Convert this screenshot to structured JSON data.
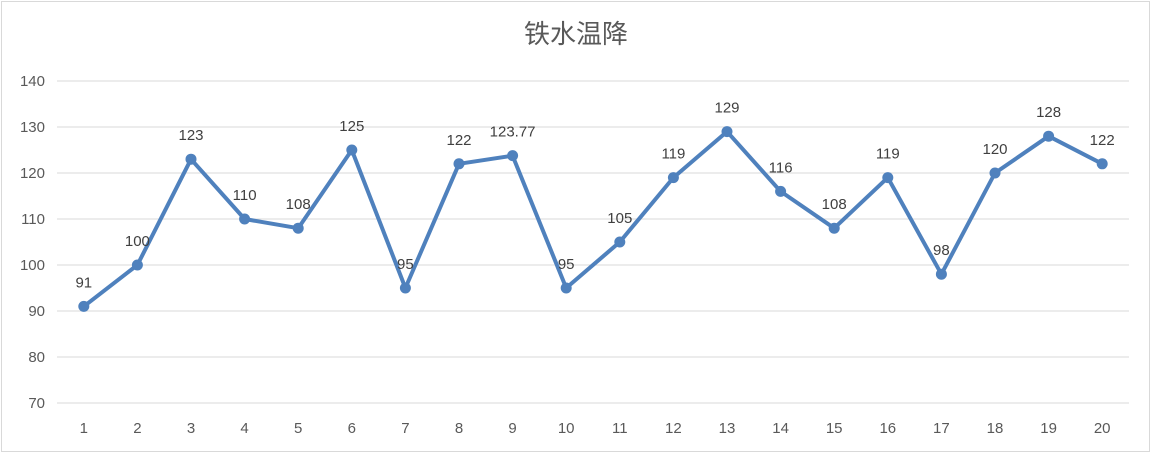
{
  "chart_data": {
    "type": "line",
    "title": "铁水温降",
    "xlabel": "",
    "ylabel": "",
    "categories": [
      "1",
      "2",
      "3",
      "4",
      "5",
      "6",
      "7",
      "8",
      "9",
      "10",
      "11",
      "12",
      "13",
      "14",
      "15",
      "16",
      "17",
      "18",
      "19",
      "20"
    ],
    "series": [
      {
        "values": [
          91,
          100,
          123,
          110,
          108,
          125,
          95,
          122,
          123.77,
          95,
          105,
          119,
          129,
          116,
          108,
          119,
          98,
          120,
          128,
          122
        ],
        "labels": [
          "91",
          "100",
          "123",
          "110",
          "108",
          "125",
          "95",
          "122",
          "123.77",
          "95",
          "105",
          "119",
          "129",
          "116",
          "108",
          "119",
          "98",
          "120",
          "128",
          "122"
        ],
        "color": "#4f81bd"
      }
    ],
    "ylim": [
      70,
      140
    ],
    "yticks": [
      "70",
      "80",
      "90",
      "100",
      "110",
      "120",
      "130",
      "140"
    ],
    "grid": true,
    "legend": "none"
  }
}
